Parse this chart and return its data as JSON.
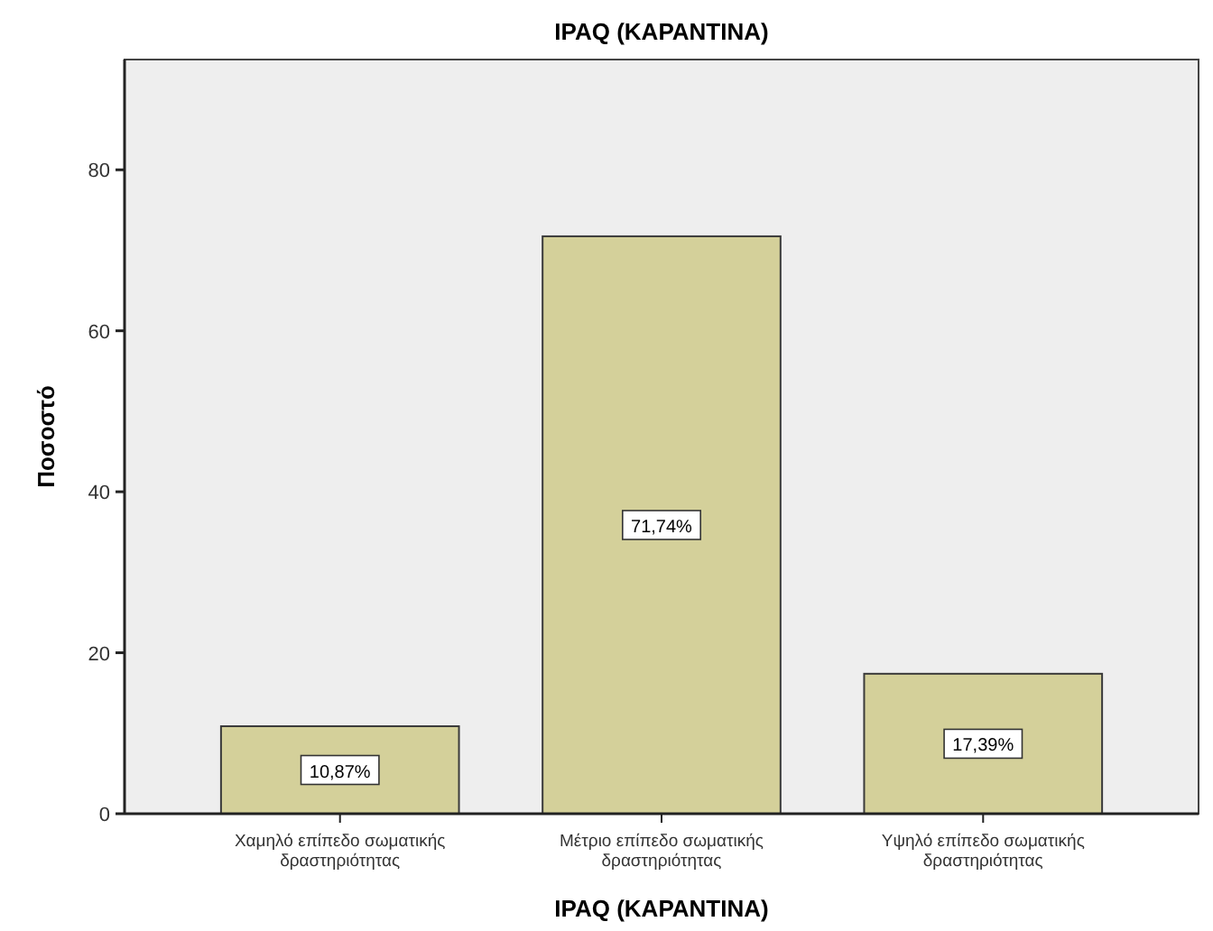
{
  "chart_data": {
    "type": "bar",
    "title": "IPAQ (ΚΑΡΑΝΤΙΝΑ)",
    "xlabel": "IPAQ (ΚΑΡΑΝΤΙΝΑ)",
    "ylabel": "Ποσοστό",
    "categories": [
      "Χαμηλό επίπεδο σωματικής δραστηριότητας",
      "Μέτριο επίπεδο σωματικής δραστηριότητας",
      "Υψηλό επίπεδο σωματικής δραστηριότητας"
    ],
    "values": [
      10.87,
      71.74,
      17.39
    ],
    "value_labels": [
      "10,87%",
      "71,74%",
      "17,39%"
    ],
    "color": "#d4d09a",
    "ylim": [
      0,
      93.7
    ],
    "yticks": [
      0,
      20,
      40,
      60,
      80
    ],
    "grid": false
  }
}
